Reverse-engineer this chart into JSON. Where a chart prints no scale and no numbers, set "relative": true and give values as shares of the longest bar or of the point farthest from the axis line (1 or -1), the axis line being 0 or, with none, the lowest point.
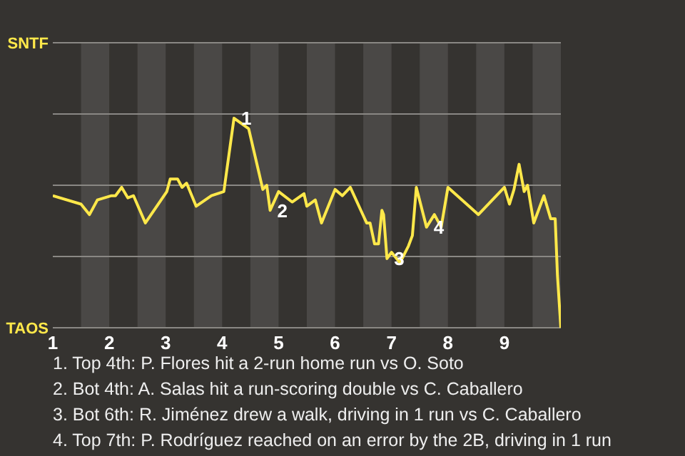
{
  "chart_data": {
    "type": "line",
    "xlim": [
      1,
      10
    ],
    "xticks": [
      1,
      2,
      3,
      4,
      5,
      6,
      7,
      8,
      9
    ],
    "relative": true,
    "ref_lines": [
      {
        "axis": "y",
        "value": 0,
        "label": "TAOS",
        "color": "#8a8884"
      },
      {
        "axis": "y",
        "value": 0.34,
        "label": null,
        "color": "#8a8884"
      },
      {
        "axis": "y",
        "value": 0.68,
        "label": null,
        "color": "#8a8884"
      },
      {
        "axis": "y",
        "value": 1.02,
        "label": null,
        "color": "#8a8884"
      },
      {
        "axis": "y",
        "value": 1.36,
        "label": "SNTF",
        "color": "#8a8884"
      }
    ],
    "marker": "none",
    "line_style": "solid",
    "bands": [
      {
        "axis": "x",
        "from": 1.5,
        "to": 2,
        "color": "#4a4846"
      },
      {
        "axis": "x",
        "from": 2.5,
        "to": 3,
        "color": "#4a4846"
      },
      {
        "axis": "x",
        "from": 3.5,
        "to": 4,
        "color": "#4a4846"
      },
      {
        "axis": "x",
        "from": 4.5,
        "to": 5,
        "color": "#4a4846"
      },
      {
        "axis": "x",
        "from": 5.5,
        "to": 6,
        "color": "#4a4846"
      },
      {
        "axis": "x",
        "from": 6.5,
        "to": 7,
        "color": "#4a4846"
      },
      {
        "axis": "x",
        "from": 7.5,
        "to": 8,
        "color": "#4a4846"
      },
      {
        "axis": "x",
        "from": 8.5,
        "to": 9,
        "color": "#4a4846"
      },
      {
        "axis": "x",
        "from": 9.5,
        "to": 10,
        "color": "#4a4846"
      }
    ],
    "series": [
      {
        "color": "#ffe84a",
        "x": [
          1,
          1.5,
          1.65,
          1.79,
          2.04,
          2.11,
          2.22,
          2.33,
          2.43,
          2.64,
          3.02,
          3.08,
          3.21,
          3.29,
          3.37,
          3.54,
          3.81,
          4.03,
          4.21,
          4.47,
          4.66,
          4.72,
          4.79,
          4.85,
          5,
          5.24,
          5.45,
          5.5,
          5.65,
          5.76,
          6,
          6.13,
          6.27,
          6.56,
          6.62,
          6.7,
          6.77,
          6.83,
          6.86,
          6.92,
          7,
          7.15,
          7.3,
          7.37,
          7.44,
          7.62,
          7.76,
          7.88,
          8,
          8.54,
          9,
          9.09,
          9.17,
          9.26,
          9.35,
          9.41,
          9.52,
          9.7,
          9.82,
          9.9,
          9.94,
          10
        ],
        "values": [
          0.63,
          0.59,
          0.54,
          0.61,
          0.63,
          0.63,
          0.67,
          0.62,
          0.63,
          0.5,
          0.65,
          0.71,
          0.71,
          0.67,
          0.69,
          0.58,
          0.63,
          0.65,
          1,
          0.95,
          0.73,
          0.66,
          0.68,
          0.56,
          0.65,
          0.6,
          0.64,
          0.58,
          0.61,
          0.5,
          0.66,
          0.63,
          0.67,
          0.5,
          0.5,
          0.4,
          0.4,
          0.56,
          0.54,
          0.33,
          0.36,
          0.31,
          0.39,
          0.44,
          0.67,
          0.48,
          0.54,
          0.48,
          0.67,
          0.54,
          0.67,
          0.59,
          0.66,
          0.78,
          0.65,
          0.68,
          0.5,
          0.63,
          0.52,
          0.52,
          0.25,
          0
        ]
      }
    ],
    "annotations": [
      {
        "text": "1",
        "x": 4.21,
        "y": 1
      },
      {
        "text": "2",
        "x": 4.85,
        "y": 0.56
      },
      {
        "text": "3",
        "x": 6.92,
        "y": 0.33
      },
      {
        "text": "4",
        "x": 7.62,
        "y": 0.48
      },
      "1. Top 4th: P. Flores hit a 2-run home run vs O. Soto",
      "2. Bot 4th: A. Salas hit a run-scoring double vs C. Caballero",
      "3. Bot 6th: R. Jiménez drew a walk, driving in 1 run vs C. Caballero",
      "4. Top 7th: P. Rodríguez reached on an error by the 2B, driving in 1 run"
    ]
  }
}
